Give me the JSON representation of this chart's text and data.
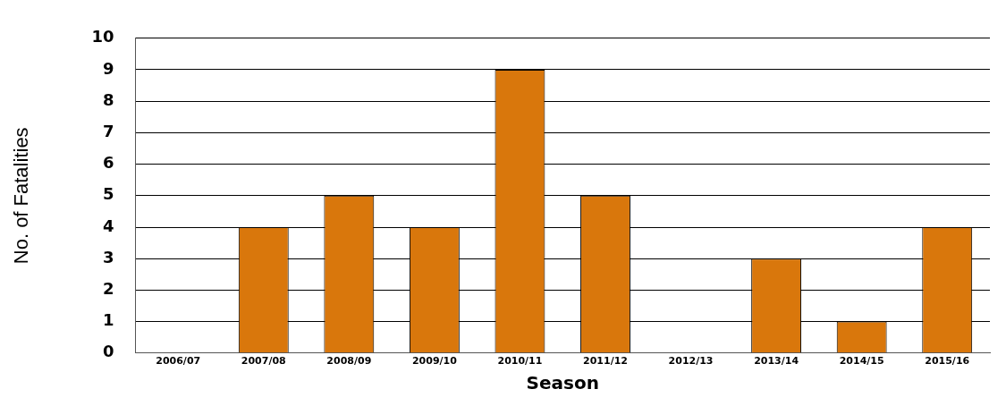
{
  "chart_data": {
    "type": "bar",
    "xlabel": "Season",
    "ylabel": "No. of Fatalities",
    "categories": [
      "2006/07",
      "2007/08",
      "2008/09",
      "2009/10",
      "2010/11",
      "2011/12",
      "2012/13",
      "2013/14",
      "2014/15",
      "2015/16"
    ],
    "values": [
      0,
      4,
      5,
      4,
      9,
      5,
      0,
      3,
      1,
      4
    ],
    "color": "#d9770c",
    "ylim": [
      0,
      10
    ],
    "yticks": [
      0,
      1,
      2,
      3,
      4,
      5,
      6,
      7,
      8,
      9,
      10
    ],
    "grid": "y",
    "legend": false
  }
}
